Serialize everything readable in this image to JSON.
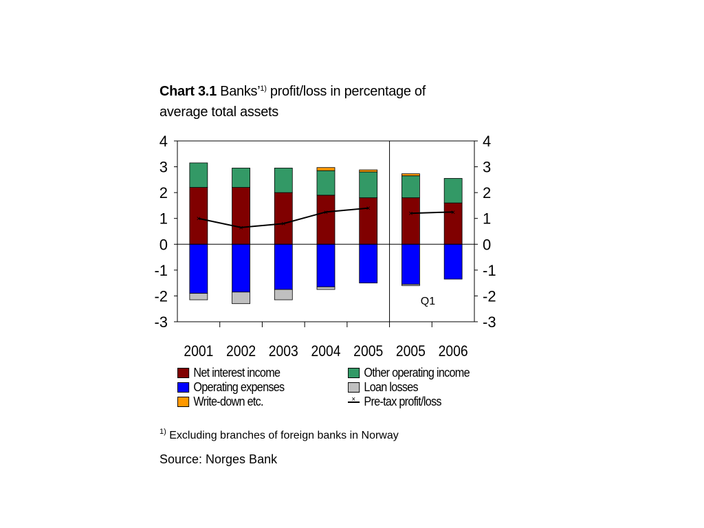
{
  "title": {
    "prefix": "Chart 3.1",
    "main": "Banks’",
    "sup": "1)",
    "rest": " profit/loss in percentage of average total assets"
  },
  "chart_data": {
    "type": "bar",
    "stacked": true,
    "categories": [
      "2001",
      "2002",
      "2003",
      "2004",
      "2005",
      "2005",
      "2006"
    ],
    "ylim": [
      -3,
      4
    ],
    "yticks": [
      4,
      3,
      2,
      1,
      0,
      -1,
      -2,
      -3
    ],
    "divider_after_index": 4,
    "annotation": "Q1",
    "series": [
      {
        "name": "Net interest income",
        "color": "#800000",
        "values": [
          2.2,
          2.2,
          2.0,
          1.9,
          1.8,
          1.8,
          1.6
        ]
      },
      {
        "name": "Other operating income",
        "color": "#339966",
        "values": [
          0.95,
          0.75,
          0.95,
          0.95,
          1.0,
          0.85,
          0.95
        ]
      },
      {
        "name": "Write-down etc.",
        "color": "#ff9900",
        "values": [
          0,
          0,
          0,
          0.12,
          0.08,
          0.08,
          0
        ]
      },
      {
        "name": "Operating expenses",
        "color": "#0000ff",
        "values": [
          -1.9,
          -1.85,
          -1.75,
          -1.65,
          -1.5,
          -1.55,
          -1.35
        ]
      },
      {
        "name": "Loan losses",
        "color": "#c0c0c0",
        "values": [
          -0.25,
          -0.45,
          -0.4,
          -0.1,
          0,
          -0.05,
          0
        ]
      }
    ],
    "line": {
      "name": "Pre-tax profit/loss",
      "values": [
        1.0,
        0.65,
        0.8,
        1.25,
        1.4,
        1.2,
        1.25
      ]
    },
    "legend_placement": "bottom"
  },
  "legend": [
    {
      "label": "Net interest income",
      "color": "#800000",
      "kind": "box"
    },
    {
      "label": "Other operating income",
      "color": "#339966",
      "kind": "box"
    },
    {
      "label": "Operating expenses",
      "color": "#0000ff",
      "kind": "box"
    },
    {
      "label": "Loan losses",
      "color": "#c0c0c0",
      "kind": "box"
    },
    {
      "label": "Write-down etc.",
      "color": "#ff9900",
      "kind": "box"
    },
    {
      "label": "Pre-tax profit/loss",
      "color": "#000000",
      "kind": "line"
    }
  ],
  "footnote": {
    "sup": "1)",
    "text": " Excluding branches of foreign banks in Norway"
  },
  "source": "Source: Norges Bank"
}
